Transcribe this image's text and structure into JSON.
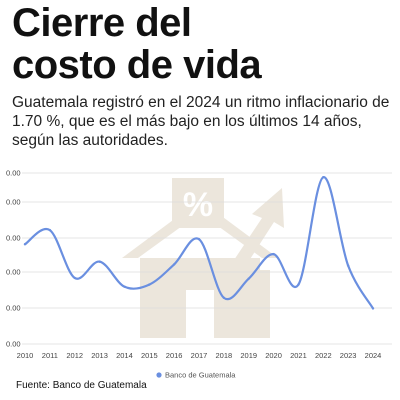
{
  "header": {
    "title_line1": "Cierre del",
    "title_line2": "costo de vida",
    "subtitle": "Guatemala registró en el 2024 un ritmo inflacionario de 1.70 %, que es el más bajo en los últimos 14 años, según las autoridades."
  },
  "footer": {
    "source": "Fuente: Banco de Guatemala"
  },
  "background_icon": "house-percent-arrow-icon",
  "colors": {
    "line": "#6a8fe0",
    "grid": "#dddddd",
    "watermark": "#ece6dc"
  },
  "chart_data": {
    "type": "line",
    "x": [
      "2010",
      "2011",
      "2012",
      "2013",
      "2014",
      "2015",
      "2016",
      "2017",
      "2018",
      "2019",
      "2020",
      "2021",
      "2022",
      "2023",
      "2024"
    ],
    "series": [
      {
        "name": "Banco de Guatemala",
        "values": [
          5.39,
          6.2,
          3.45,
          4.39,
          2.95,
          3.07,
          4.23,
          5.68,
          2.31,
          3.41,
          4.82,
          3.07,
          9.24,
          4.16,
          1.7
        ]
      }
    ],
    "y_tick_labels": [
      "0.00",
      "0.00",
      "0.00",
      "0.00",
      "0.00",
      "0.00"
    ],
    "ylim": [
      0,
      10
    ],
    "grid": true,
    "legend_position": "bottom-center"
  }
}
